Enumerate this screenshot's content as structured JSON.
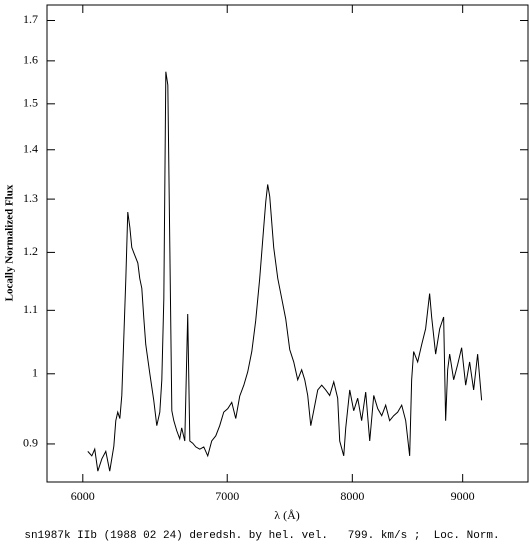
{
  "chart_data": {
    "type": "line",
    "ylabel": "Locally Normalized Flux",
    "xlabel": "λ (Å)",
    "caption": "sn1987k IIb (1988 02 24) deredsh. by hel. vel.   799. km/s ;  Loc. Norm.",
    "xscale": "log",
    "yscale": "log",
    "xlim": [
      5775,
      9650
    ],
    "ylim": [
      0.85,
      1.74
    ],
    "xticks": [
      6000,
      7000,
      8000,
      9000
    ],
    "yticks": [
      0.9,
      1,
      1.1,
      1.2,
      1.3,
      1.4,
      1.5,
      1.6,
      1.7
    ],
    "color": "#000000",
    "x": [
      6032,
      6058,
      6077,
      6097,
      6123,
      6149,
      6175,
      6202,
      6215,
      6228,
      6242,
      6255,
      6268,
      6282,
      6295,
      6309,
      6322,
      6336,
      6363,
      6376,
      6390,
      6404,
      6417,
      6445,
      6472,
      6493,
      6514,
      6528,
      6542,
      6556,
      6570,
      6584,
      6598,
      6612,
      6633,
      6654,
      6668,
      6690,
      6711,
      6726,
      6747,
      6769,
      6798,
      6827,
      6856,
      6885,
      6915,
      6944,
      6974,
      7004,
      7034,
      7064,
      7094,
      7125,
      7155,
      7186,
      7216,
      7247,
      7278,
      7294,
      7309,
      7325,
      7356,
      7388,
      7419,
      7451,
      7483,
      7515,
      7547,
      7579,
      7604,
      7628,
      7653,
      7677,
      7710,
      7743,
      7776,
      7809,
      7843,
      7876,
      7893,
      7927,
      7944,
      7978,
      8012,
      8046,
      8080,
      8115,
      8150,
      8185,
      8220,
      8255,
      8290,
      8325,
      8361,
      8397,
      8433,
      8469,
      8505,
      8523,
      8541,
      8578,
      8615,
      8651,
      8688,
      8707,
      8744,
      8782,
      8819,
      8838,
      8857,
      8876,
      8914,
      8952,
      8990,
      9029,
      9067,
      9106,
      9145,
      9184
    ],
    "values": [
      0.89,
      0.884,
      0.893,
      0.864,
      0.88,
      0.89,
      0.864,
      0.897,
      0.932,
      0.944,
      0.935,
      0.968,
      1.053,
      1.154,
      1.275,
      1.246,
      1.209,
      1.199,
      1.181,
      1.154,
      1.137,
      1.086,
      1.045,
      1.0,
      0.961,
      0.925,
      0.944,
      0.991,
      1.12,
      1.574,
      1.543,
      1.209,
      0.946,
      0.932,
      0.918,
      0.907,
      0.922,
      0.904,
      1.094,
      0.904,
      0.901,
      0.896,
      0.893,
      0.896,
      0.884,
      0.904,
      0.911,
      0.925,
      0.944,
      0.949,
      0.958,
      0.935,
      0.967,
      0.983,
      1.003,
      1.034,
      1.083,
      1.154,
      1.246,
      1.295,
      1.329,
      1.305,
      1.209,
      1.154,
      1.12,
      1.086,
      1.037,
      1.018,
      0.991,
      1.006,
      0.991,
      0.968,
      0.925,
      0.946,
      0.976,
      0.983,
      0.976,
      0.968,
      0.988,
      0.964,
      0.904,
      0.884,
      0.922,
      0.976,
      0.946,
      0.964,
      0.932,
      0.973,
      0.904,
      0.968,
      0.949,
      0.939,
      0.954,
      0.932,
      0.939,
      0.944,
      0.954,
      0.932,
      0.884,
      0.991,
      1.034,
      1.018,
      1.045,
      1.07,
      1.128,
      1.089,
      1.03,
      1.07,
      1.089,
      0.932,
      1.006,
      1.03,
      0.991,
      1.014,
      1.04,
      0.983,
      1.018,
      0.976,
      1.03,
      0.961
    ]
  }
}
